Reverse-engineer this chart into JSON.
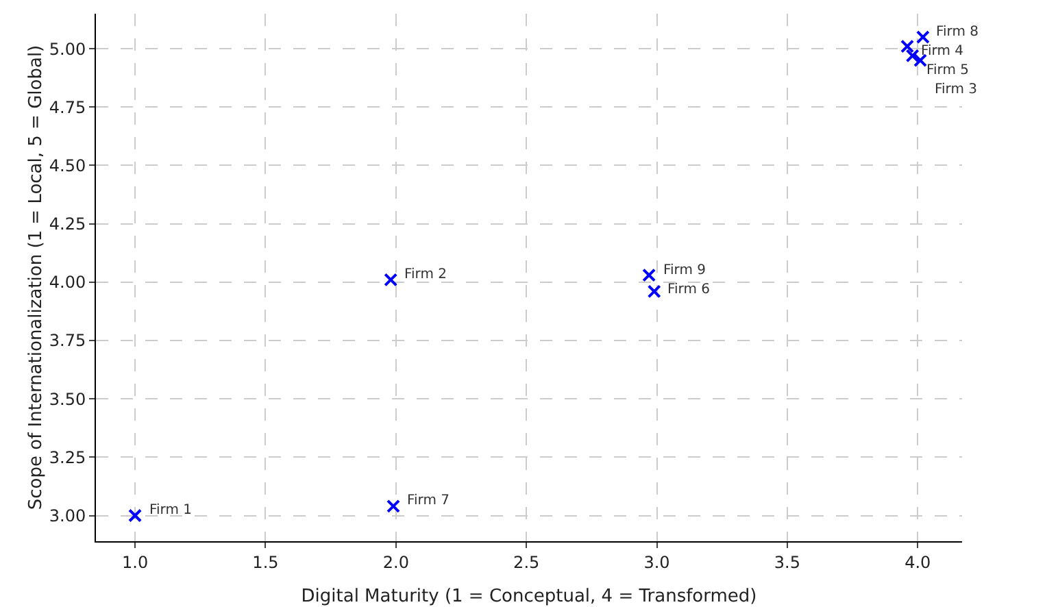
{
  "chart_data": {
    "type": "scatter",
    "xlabel": "Digital Maturity (1 = Conceptual, 4 = Transformed)",
    "ylabel": "Scope of Internationalization (1 = Local, 5 = Global)",
    "x": [
      1.0,
      1.98,
      4.01,
      3.96,
      3.98,
      2.99,
      1.99,
      4.02,
      2.97
    ],
    "series": [
      {
        "color": "#0000ff",
        "values": [
          3.0,
          4.01,
          4.95,
          5.01,
          4.97,
          3.96,
          3.04,
          5.05,
          4.03
        ]
      }
    ],
    "marker": "cross",
    "grid": true,
    "xlim": [
      0.85,
      4.17
    ],
    "ylim": [
      2.89,
      5.15
    ],
    "xticks": [
      {
        "value": 1,
        "label": "1.0"
      },
      1.5,
      {
        "value": 2,
        "label": "2.0"
      },
      2.5,
      {
        "value": 3,
        "label": "3.0"
      },
      3.5,
      {
        "value": 4,
        "label": "4.0"
      }
    ],
    "yticks": [
      {
        "value": 3,
        "label": "3.00"
      },
      3.25,
      {
        "value": 3.5,
        "label": "3.50"
      },
      3.75,
      {
        "value": 4,
        "label": "4.00"
      },
      4.25,
      {
        "value": 4.5,
        "label": "4.50"
      },
      4.75,
      {
        "value": 5,
        "label": "5.00"
      }
    ],
    "annotations": [
      {
        "text": "Firm 1",
        "x": 1.0,
        "y": 3.0
      },
      {
        "text": "Firm 2",
        "x": 1.98,
        "y": 4.01
      },
      {
        "text": "Firm 3",
        "x": 4.01,
        "y": 4.95
      },
      {
        "text": "Firm 4",
        "x": 3.96,
        "y": 5.01
      },
      {
        "text": "Firm 5",
        "x": 3.98,
        "y": 4.97
      },
      {
        "text": "Firm 6",
        "x": 2.99,
        "y": 3.96
      },
      {
        "text": "Firm 7",
        "x": 1.99,
        "y": 3.04
      },
      {
        "text": "Firm 8",
        "x": 4.02,
        "y": 5.05
      },
      {
        "text": "Firm 9",
        "x": 2.97,
        "y": 4.03
      }
    ]
  }
}
